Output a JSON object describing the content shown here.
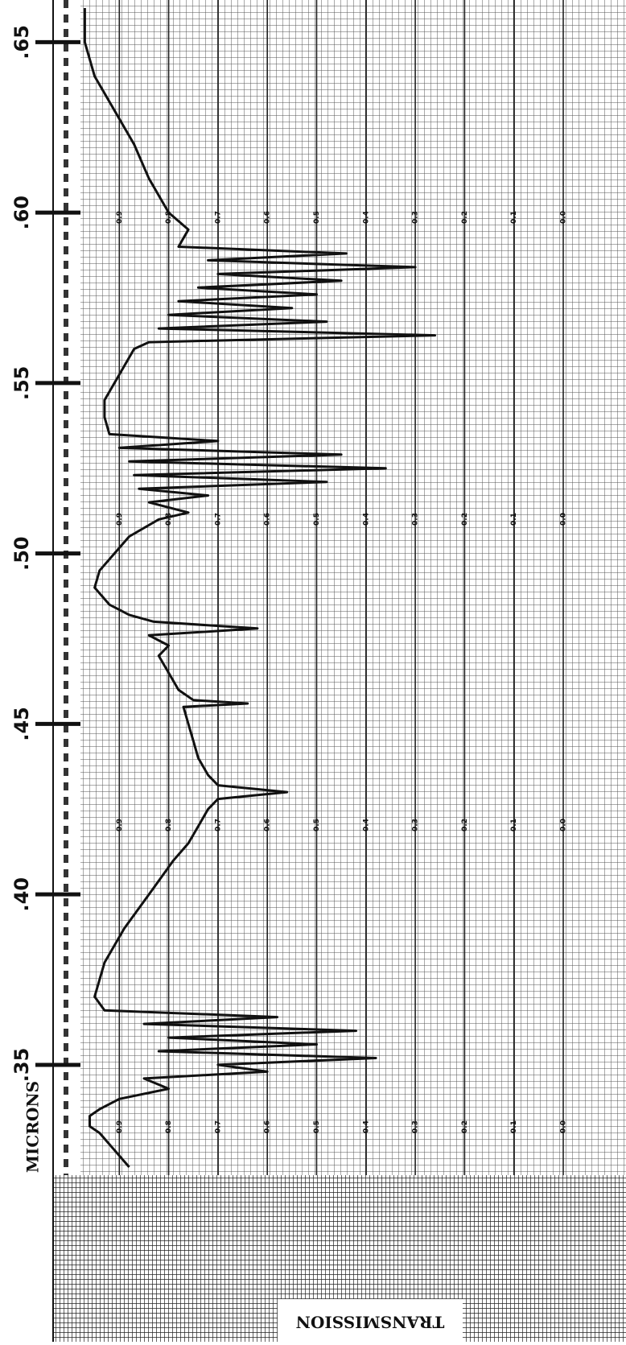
{
  "chart_data": {
    "type": "line",
    "xlabel": "MICRONS",
    "ylabel": "TRANSMISSION",
    "orientation": "vertical-x",
    "color": "#111111",
    "grid": true,
    "xlim": [
      0.32,
      0.66
    ],
    "xticks": [
      {
        "value": 0.35,
        "label": ".35"
      },
      {
        "value": 0.4,
        "label": ".40"
      },
      {
        "value": 0.45,
        "label": ".45"
      },
      {
        "value": 0.5,
        "label": ".50"
      },
      {
        "value": 0.55,
        "label": ".55"
      },
      {
        "value": 0.6,
        "label": ".60"
      },
      {
        "value": 0.65,
        "label": ".65"
      }
    ],
    "ylim": [
      0,
      1.0
    ],
    "yticks": [
      {
        "value": 0,
        "label": "0.0"
      },
      0.1,
      0.2,
      0.3,
      0.4,
      0.5,
      0.6,
      0.7,
      0.8,
      0.9
    ],
    "x": [
      0.66,
      0.65,
      0.64,
      0.63,
      0.62,
      0.61,
      0.6,
      0.595,
      0.59,
      0.588,
      0.586,
      0.584,
      0.582,
      0.58,
      0.578,
      0.576,
      0.574,
      0.572,
      0.57,
      0.568,
      0.566,
      0.564,
      0.562,
      0.56,
      0.555,
      0.55,
      0.545,
      0.54,
      0.535,
      0.533,
      0.531,
      0.529,
      0.527,
      0.525,
      0.523,
      0.521,
      0.519,
      0.517,
      0.515,
      0.512,
      0.51,
      0.505,
      0.5,
      0.495,
      0.49,
      0.485,
      0.482,
      0.48,
      0.478,
      0.476,
      0.473,
      0.47,
      0.465,
      0.46,
      0.457,
      0.456,
      0.455,
      0.45,
      0.445,
      0.44,
      0.435,
      0.432,
      0.43,
      0.428,
      0.425,
      0.42,
      0.415,
      0.41,
      0.4,
      0.39,
      0.38,
      0.37,
      0.366,
      0.364,
      0.362,
      0.36,
      0.358,
      0.356,
      0.354,
      0.352,
      0.35,
      0.348,
      0.346,
      0.343,
      0.34,
      0.337,
      0.335,
      0.332,
      0.33,
      0.325,
      0.32
    ],
    "values": [
      0.97,
      0.97,
      0.95,
      0.91,
      0.87,
      0.84,
      0.8,
      0.76,
      0.78,
      0.44,
      0.72,
      0.3,
      0.7,
      0.45,
      0.74,
      0.5,
      0.78,
      0.55,
      0.8,
      0.48,
      0.82,
      0.26,
      0.84,
      0.87,
      0.89,
      0.91,
      0.93,
      0.93,
      0.92,
      0.7,
      0.9,
      0.45,
      0.88,
      0.36,
      0.87,
      0.48,
      0.86,
      0.72,
      0.84,
      0.76,
      0.82,
      0.88,
      0.91,
      0.94,
      0.95,
      0.92,
      0.88,
      0.83,
      0.62,
      0.84,
      0.8,
      0.82,
      0.8,
      0.78,
      0.75,
      0.64,
      0.77,
      0.76,
      0.75,
      0.74,
      0.72,
      0.7,
      0.56,
      0.7,
      0.72,
      0.74,
      0.76,
      0.79,
      0.84,
      0.89,
      0.93,
      0.95,
      0.93,
      0.58,
      0.85,
      0.42,
      0.8,
      0.5,
      0.82,
      0.38,
      0.7,
      0.6,
      0.85,
      0.8,
      0.9,
      0.94,
      0.96,
      0.96,
      0.94,
      0.91,
      0.88
    ]
  }
}
